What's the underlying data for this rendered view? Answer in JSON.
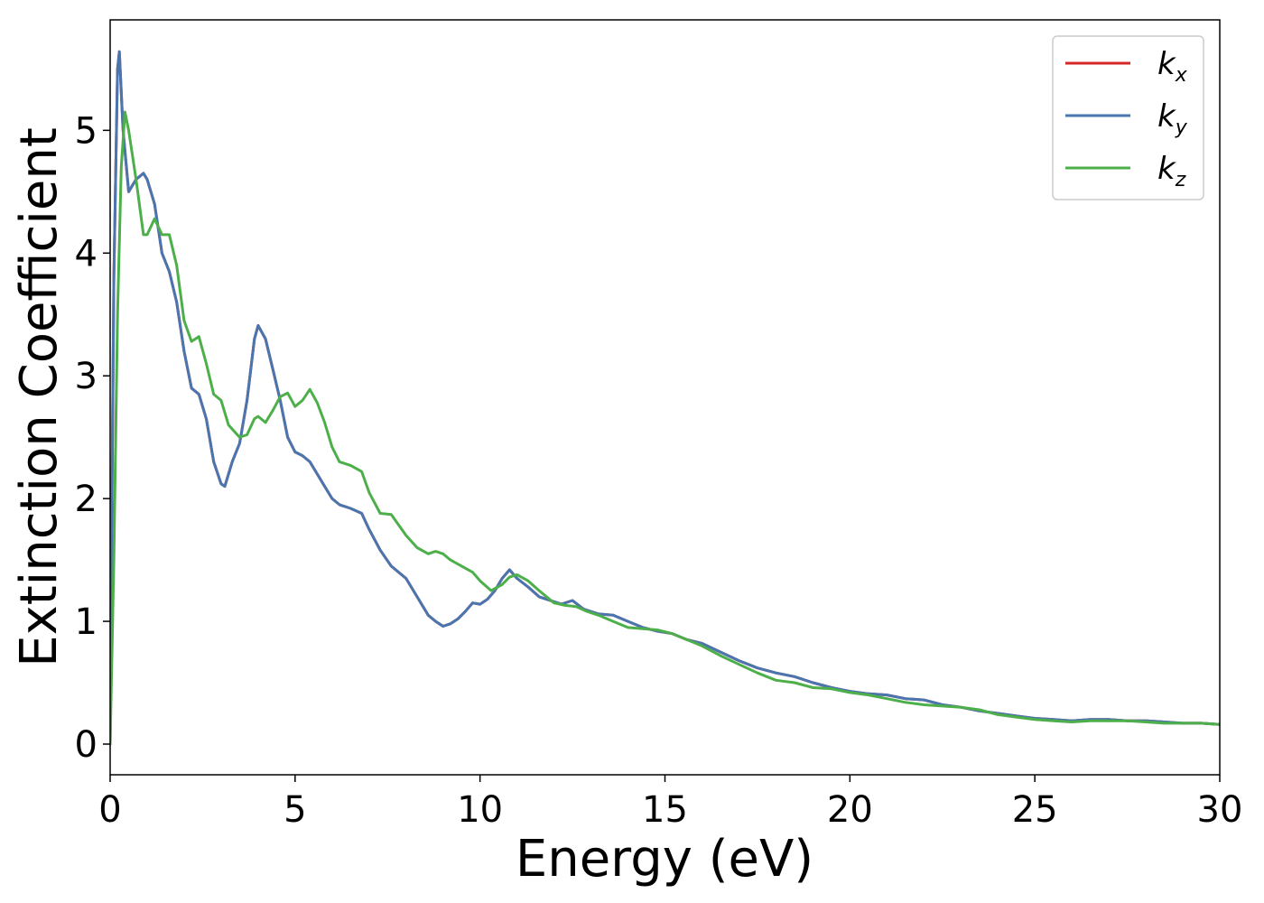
{
  "chart_data": {
    "type": "line",
    "title": "",
    "xlabel": "Energy (eV)",
    "ylabel": "Extinction Coefficient",
    "xlim": [
      0,
      30
    ],
    "ylim": [
      -0.25,
      5.9
    ],
    "xticks": [
      0,
      5,
      10,
      15,
      20,
      25,
      30
    ],
    "yticks": [
      0,
      1,
      2,
      3,
      4,
      5
    ],
    "grid": false,
    "legend_position": "top-right",
    "series": [
      {
        "name": "kx",
        "label_base": "k",
        "label_sub": "x",
        "color": "#d62728",
        "x": [
          0,
          0.05,
          0.1,
          0.2,
          0.25,
          0.35,
          0.5,
          0.7,
          0.9,
          1.0,
          1.2,
          1.4,
          1.6,
          1.8,
          2.0,
          2.2,
          2.4,
          2.6,
          2.8,
          3.0,
          3.1,
          3.3,
          3.5,
          3.7,
          3.9,
          4.0,
          4.2,
          4.4,
          4.6,
          4.8,
          5.0,
          5.2,
          5.4,
          5.6,
          5.8,
          6.0,
          6.2,
          6.5,
          6.8,
          7.0,
          7.3,
          7.6,
          8.0,
          8.3,
          8.6,
          8.8,
          9.0,
          9.2,
          9.4,
          9.6,
          9.8,
          10.0,
          10.2,
          10.4,
          10.6,
          10.8,
          11.0,
          11.3,
          11.6,
          12.0,
          12.2,
          12.5,
          12.8,
          13.2,
          13.6,
          14.0,
          14.4,
          14.8,
          15.2,
          15.6,
          16.0,
          16.5,
          17.0,
          17.5,
          18.0,
          18.5,
          19.0,
          19.5,
          20.0,
          20.5,
          21.0,
          21.5,
          22.0,
          22.5,
          23.0,
          23.5,
          24.0,
          24.5,
          25.0,
          25.5,
          26.0,
          26.5,
          27.0,
          27.5,
          28.0,
          28.5,
          29.0,
          29.5,
          30.0
        ],
        "y": [
          0.0,
          2.0,
          3.8,
          5.5,
          5.64,
          5.0,
          4.5,
          4.6,
          4.65,
          4.6,
          4.4,
          4.0,
          3.85,
          3.6,
          3.2,
          2.9,
          2.85,
          2.65,
          2.3,
          2.12,
          2.1,
          2.3,
          2.45,
          2.8,
          3.3,
          3.41,
          3.3,
          3.05,
          2.8,
          2.5,
          2.38,
          2.35,
          2.3,
          2.2,
          2.1,
          2.0,
          1.95,
          1.92,
          1.88,
          1.75,
          1.58,
          1.45,
          1.35,
          1.2,
          1.05,
          1.0,
          0.96,
          0.98,
          1.02,
          1.08,
          1.15,
          1.14,
          1.18,
          1.25,
          1.35,
          1.42,
          1.35,
          1.28,
          1.2,
          1.16,
          1.14,
          1.17,
          1.1,
          1.06,
          1.05,
          1.0,
          0.95,
          0.92,
          0.9,
          0.85,
          0.82,
          0.75,
          0.68,
          0.62,
          0.58,
          0.55,
          0.5,
          0.46,
          0.43,
          0.41,
          0.4,
          0.37,
          0.36,
          0.32,
          0.3,
          0.27,
          0.25,
          0.23,
          0.21,
          0.2,
          0.19,
          0.2,
          0.2,
          0.19,
          0.19,
          0.18,
          0.17,
          0.17,
          0.16
        ]
      },
      {
        "name": "ky",
        "label_base": "k",
        "label_sub": "y",
        "color": "#4a76b0",
        "x": [
          0,
          0.05,
          0.1,
          0.2,
          0.25,
          0.35,
          0.5,
          0.7,
          0.9,
          1.0,
          1.2,
          1.4,
          1.6,
          1.8,
          2.0,
          2.2,
          2.4,
          2.6,
          2.8,
          3.0,
          3.1,
          3.3,
          3.5,
          3.7,
          3.9,
          4.0,
          4.2,
          4.4,
          4.6,
          4.8,
          5.0,
          5.2,
          5.4,
          5.6,
          5.8,
          6.0,
          6.2,
          6.5,
          6.8,
          7.0,
          7.3,
          7.6,
          8.0,
          8.3,
          8.6,
          8.8,
          9.0,
          9.2,
          9.4,
          9.6,
          9.8,
          10.0,
          10.2,
          10.4,
          10.6,
          10.8,
          11.0,
          11.3,
          11.6,
          12.0,
          12.2,
          12.5,
          12.8,
          13.2,
          13.6,
          14.0,
          14.4,
          14.8,
          15.2,
          15.6,
          16.0,
          16.5,
          17.0,
          17.5,
          18.0,
          18.5,
          19.0,
          19.5,
          20.0,
          20.5,
          21.0,
          21.5,
          22.0,
          22.5,
          23.0,
          23.5,
          24.0,
          24.5,
          25.0,
          25.5,
          26.0,
          26.5,
          27.0,
          27.5,
          28.0,
          28.5,
          29.0,
          29.5,
          30.0
        ],
        "y": [
          0.0,
          2.0,
          3.8,
          5.5,
          5.64,
          5.0,
          4.5,
          4.6,
          4.65,
          4.6,
          4.4,
          4.0,
          3.85,
          3.6,
          3.2,
          2.9,
          2.85,
          2.65,
          2.3,
          2.12,
          2.1,
          2.3,
          2.45,
          2.8,
          3.3,
          3.41,
          3.3,
          3.05,
          2.8,
          2.5,
          2.38,
          2.35,
          2.3,
          2.2,
          2.1,
          2.0,
          1.95,
          1.92,
          1.88,
          1.75,
          1.58,
          1.45,
          1.35,
          1.2,
          1.05,
          1.0,
          0.96,
          0.98,
          1.02,
          1.08,
          1.15,
          1.14,
          1.18,
          1.25,
          1.35,
          1.42,
          1.35,
          1.28,
          1.2,
          1.16,
          1.14,
          1.17,
          1.1,
          1.06,
          1.05,
          1.0,
          0.95,
          0.92,
          0.9,
          0.85,
          0.82,
          0.75,
          0.68,
          0.62,
          0.58,
          0.55,
          0.5,
          0.46,
          0.43,
          0.41,
          0.4,
          0.37,
          0.36,
          0.32,
          0.3,
          0.27,
          0.25,
          0.23,
          0.21,
          0.2,
          0.19,
          0.2,
          0.2,
          0.19,
          0.19,
          0.18,
          0.17,
          0.17,
          0.16
        ]
      },
      {
        "name": "kz",
        "label_base": "k",
        "label_sub": "z",
        "color": "#4daf4a",
        "x": [
          0,
          0.1,
          0.2,
          0.3,
          0.4,
          0.5,
          0.7,
          0.9,
          1.0,
          1.2,
          1.4,
          1.6,
          1.8,
          2.0,
          2.2,
          2.4,
          2.6,
          2.8,
          3.0,
          3.2,
          3.5,
          3.7,
          3.9,
          4.0,
          4.2,
          4.4,
          4.6,
          4.8,
          5.0,
          5.2,
          5.4,
          5.6,
          5.8,
          6.0,
          6.2,
          6.5,
          6.8,
          7.0,
          7.3,
          7.6,
          8.0,
          8.3,
          8.6,
          8.8,
          9.0,
          9.2,
          9.5,
          9.8,
          10.0,
          10.3,
          10.6,
          10.8,
          11.0,
          11.3,
          11.6,
          12.0,
          12.3,
          12.6,
          12.9,
          13.2,
          13.6,
          14.0,
          14.4,
          14.8,
          15.2,
          15.6,
          16.0,
          16.5,
          17.0,
          17.5,
          18.0,
          18.5,
          19.0,
          19.5,
          20.0,
          20.5,
          21.0,
          21.5,
          22.0,
          22.5,
          23.0,
          23.5,
          24.0,
          24.5,
          25.0,
          25.5,
          26.0,
          26.5,
          27.0,
          27.5,
          28.0,
          28.5,
          29.0,
          29.5,
          30.0
        ],
        "y": [
          0.0,
          1.5,
          3.5,
          4.7,
          5.15,
          5.0,
          4.6,
          4.15,
          4.15,
          4.28,
          4.15,
          4.15,
          3.9,
          3.45,
          3.28,
          3.32,
          3.1,
          2.85,
          2.8,
          2.6,
          2.5,
          2.52,
          2.65,
          2.67,
          2.62,
          2.72,
          2.83,
          2.86,
          2.75,
          2.8,
          2.89,
          2.78,
          2.62,
          2.42,
          2.3,
          2.27,
          2.22,
          2.05,
          1.88,
          1.87,
          1.7,
          1.6,
          1.55,
          1.57,
          1.55,
          1.5,
          1.45,
          1.4,
          1.33,
          1.25,
          1.3,
          1.36,
          1.38,
          1.33,
          1.25,
          1.15,
          1.13,
          1.12,
          1.08,
          1.05,
          1.0,
          0.95,
          0.94,
          0.93,
          0.9,
          0.85,
          0.8,
          0.72,
          0.65,
          0.58,
          0.52,
          0.5,
          0.46,
          0.45,
          0.42,
          0.4,
          0.37,
          0.34,
          0.32,
          0.31,
          0.3,
          0.28,
          0.24,
          0.22,
          0.2,
          0.19,
          0.18,
          0.19,
          0.19,
          0.19,
          0.18,
          0.17,
          0.17,
          0.17,
          0.16
        ]
      }
    ]
  }
}
